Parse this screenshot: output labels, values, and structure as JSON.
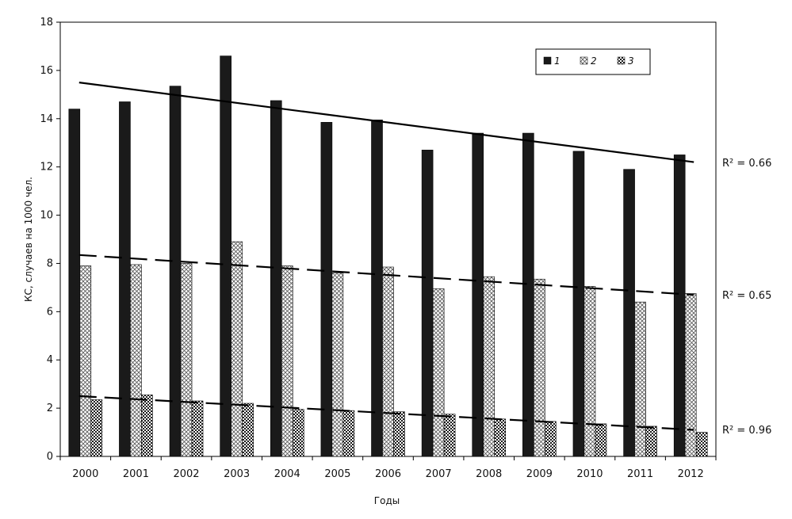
{
  "chart_data": {
    "type": "bar",
    "categories": [
      "2000",
      "2001",
      "2002",
      "2003",
      "2004",
      "2005",
      "2006",
      "2007",
      "2008",
      "2009",
      "2010",
      "2011",
      "2012"
    ],
    "series": [
      {
        "name": "1",
        "values": [
          14.4,
          14.7,
          15.35,
          16.6,
          14.75,
          13.85,
          13.95,
          12.7,
          13.4,
          13.4,
          12.65,
          11.9,
          12.5
        ],
        "pattern": "solid"
      },
      {
        "name": "2",
        "values": [
          7.9,
          7.95,
          8.0,
          8.9,
          7.9,
          7.6,
          7.85,
          6.95,
          7.45,
          7.35,
          7.05,
          6.4,
          6.75
        ],
        "pattern": "crosshatch"
      },
      {
        "name": "3",
        "values": [
          2.35,
          2.55,
          2.3,
          2.2,
          1.95,
          1.9,
          1.85,
          1.75,
          1.55,
          1.45,
          1.35,
          1.25,
          1.0
        ],
        "pattern": "checker"
      }
    ],
    "trendlines": [
      {
        "series": "1",
        "start": 15.5,
        "end": 12.2,
        "style": "solid",
        "r2_label": "R² = 0.66"
      },
      {
        "series": "2",
        "start": 8.35,
        "end": 6.7,
        "style": "dashed",
        "r2_label": "R² = 0.65"
      },
      {
        "series": "3",
        "start": 2.5,
        "end": 1.1,
        "style": "dashed",
        "r2_label": "R² = 0.96"
      }
    ],
    "xlabel": "Годы",
    "ylabel": "КС, случаев на 1000 чел.",
    "ylim": [
      0,
      18
    ],
    "yticks": [
      0,
      2,
      4,
      6,
      8,
      10,
      12,
      14,
      16,
      18
    ],
    "grid": false,
    "legend_position": "top-right",
    "colors": {
      "series1": "#1a1a1a",
      "hatch": "#333333",
      "axis": "#000000"
    }
  }
}
